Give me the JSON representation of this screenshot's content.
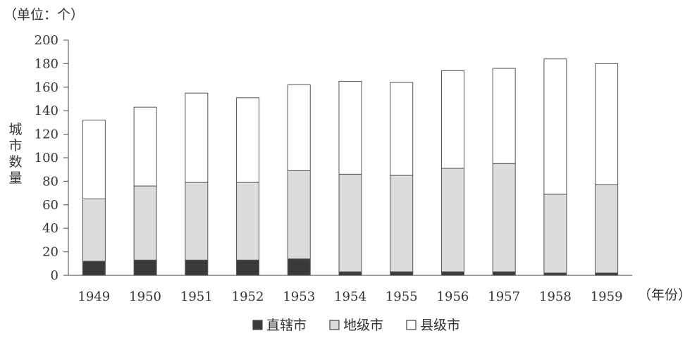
{
  "chart_data": {
    "type": "bar",
    "stacked": true,
    "unit_label": "（单位：个）",
    "ylabel": "城市数量",
    "xlabel": "（年份）",
    "categories": [
      "1949",
      "1950",
      "1951",
      "1952",
      "1953",
      "1954",
      "1955",
      "1956",
      "1957",
      "1958",
      "1959"
    ],
    "series": [
      {
        "name": "直辖市",
        "color": "#3a3a3a",
        "values": [
          12,
          13,
          13,
          13,
          14,
          3,
          3,
          3,
          3,
          2,
          2
        ]
      },
      {
        "name": "地级市",
        "color": "#dcdcdc",
        "values": [
          53,
          63,
          66,
          66,
          75,
          83,
          82,
          88,
          92,
          67,
          75
        ]
      },
      {
        "name": "县级市",
        "color": "#ffffff",
        "values": [
          67,
          67,
          76,
          72,
          73,
          79,
          79,
          83,
          81,
          115,
          103
        ]
      }
    ],
    "ylim": [
      0,
      200
    ],
    "yticks": [
      0,
      20,
      40,
      60,
      80,
      100,
      120,
      140,
      160,
      180,
      200
    ],
    "grid": false,
    "legend_position": "bottom"
  }
}
